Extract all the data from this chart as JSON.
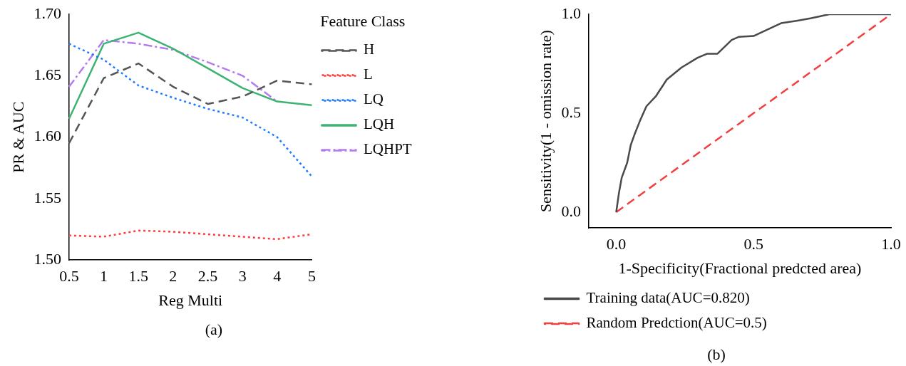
{
  "chart_data": [
    {
      "type": "line",
      "xlabel": "Reg Multi",
      "ylabel": "PR & AUC",
      "legend_title": "Feature Class",
      "legend": "right",
      "grid": false,
      "marker": "none",
      "categories": [
        "0.5",
        "1",
        "1.5",
        "2",
        "2.5",
        "3",
        "4",
        "5"
      ],
      "ylim": [
        1.5,
        1.7
      ],
      "yticks": [
        {
          "value": 1.5,
          "label": "1.50"
        },
        {
          "value": 1.55,
          "label": "1.55"
        },
        {
          "value": 1.6,
          "label": "1.60"
        },
        {
          "value": 1.65,
          "label": "1.65"
        },
        {
          "value": 1.7,
          "label": "1.70"
        }
      ],
      "annotations": [
        "(a)"
      ],
      "series": [
        {
          "name": "H",
          "color": "#555555",
          "line_style": "dashed",
          "values": [
            1.595,
            1.648,
            1.66,
            1.641,
            1.627,
            1.633,
            1.646,
            1.643
          ]
        },
        {
          "name": "L",
          "color": "#ff3b3b",
          "line_style": "dotted",
          "values": [
            1.52,
            1.519,
            1.524,
            1.523,
            1.521,
            1.519,
            1.517,
            1.521
          ]
        },
        {
          "name": "LQ",
          "color": "#1f7bff",
          "line_style": "dotted",
          "values": [
            1.676,
            1.663,
            1.642,
            1.632,
            1.623,
            1.616,
            1.6,
            1.568
          ]
        },
        {
          "name": "LQH",
          "color": "#3cb371",
          "line_style": "solid",
          "values": [
            1.615,
            1.676,
            1.685,
            1.672,
            1.656,
            1.64,
            1.629,
            1.626
          ]
        },
        {
          "name": "LQHPT",
          "color": "#b57bf0",
          "line_style": "dashdot",
          "values": [
            1.641,
            1.679,
            1.676,
            1.671,
            1.661,
            1.65,
            1.629,
            null
          ]
        }
      ]
    },
    {
      "type": "line",
      "xlabel": "1-Specificity(Fractional predcted area)",
      "ylabel": "Sensitivity(1 - omission rate)",
      "legend": "bottom",
      "grid": false,
      "marker": "none",
      "xlim": [
        -0.1,
        1.0
      ],
      "ylim": [
        -0.08,
        1.0
      ],
      "xticks": [
        {
          "value": 0,
          "label": "0.0"
        },
        {
          "value": 0.5,
          "label": "0.5"
        },
        {
          "value": 1,
          "label": "1.0"
        }
      ],
      "yticks": [
        {
          "value": 0,
          "label": "0.0"
        },
        {
          "value": 0.5,
          "label": "0.5"
        },
        {
          "value": 1,
          "label": "1.0"
        }
      ],
      "annotations": [
        "(b)"
      ],
      "series": [
        {
          "name": "Training data(AUC=0.820)",
          "color": "#4a4a4a",
          "line_style": "solid",
          "x": [
            0,
            0.01,
            0.02,
            0.04,
            0.053,
            0.066,
            0.086,
            0.11,
            0.145,
            0.184,
            0.237,
            0.296,
            0.33,
            0.368,
            0.42,
            0.447,
            0.5,
            0.54,
            0.6,
            0.66,
            0.71,
            0.776,
            1
          ],
          "values": [
            0,
            0.097,
            0.174,
            0.25,
            0.34,
            0.39,
            0.46,
            0.535,
            0.587,
            0.67,
            0.73,
            0.78,
            0.8,
            0.8,
            0.87,
            0.886,
            0.89,
            0.916,
            0.955,
            0.968,
            0.98,
            1,
            1
          ]
        },
        {
          "name": "Random Predction(AUC=0.5)",
          "color": "#f04040",
          "line_style": "dashed",
          "x": [
            0,
            1
          ],
          "values": [
            0,
            1
          ]
        }
      ]
    }
  ]
}
